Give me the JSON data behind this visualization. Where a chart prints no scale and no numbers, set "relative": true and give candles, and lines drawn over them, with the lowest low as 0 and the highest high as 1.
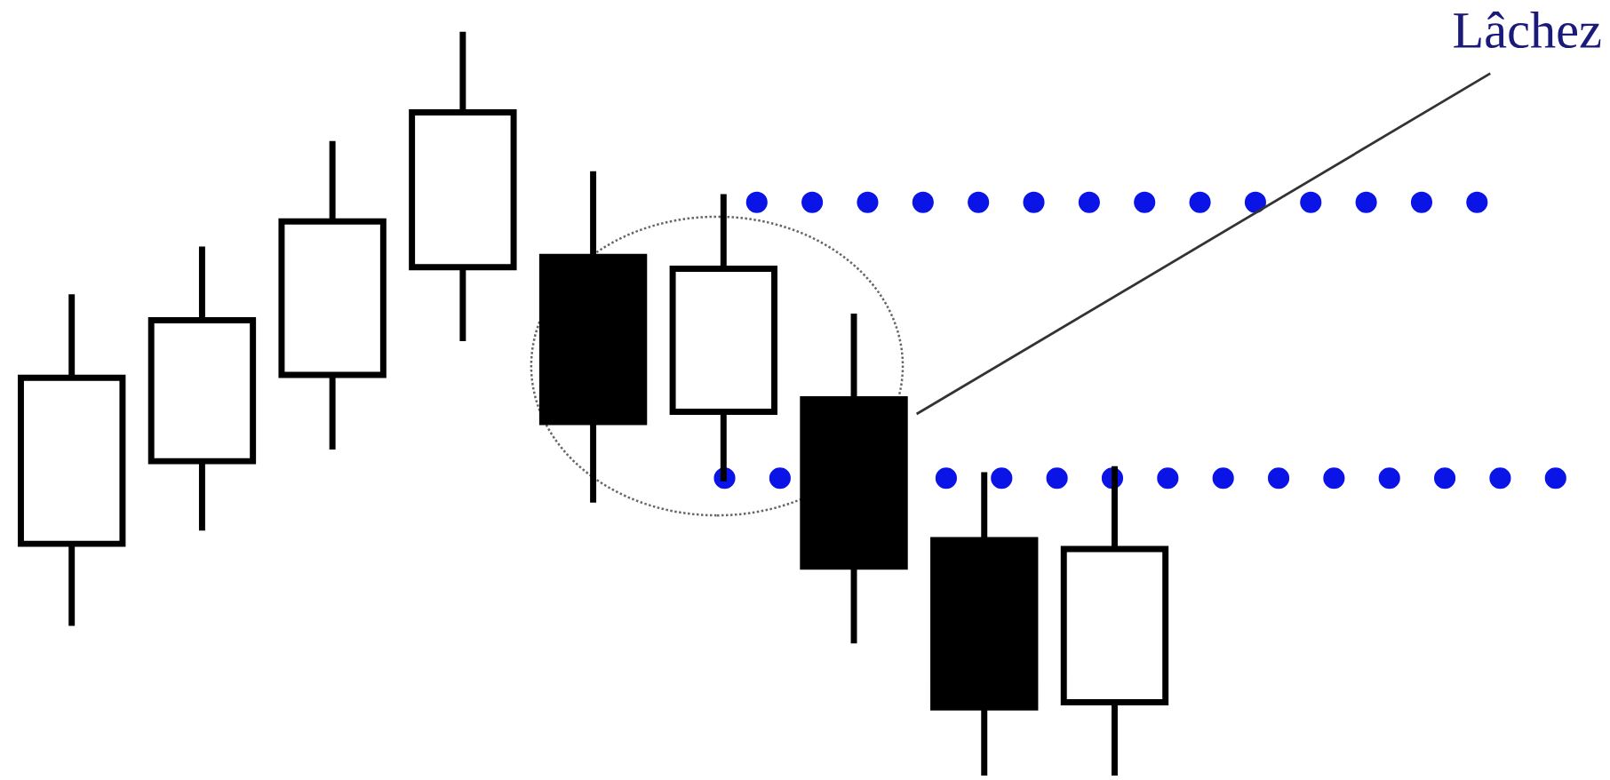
{
  "chart_data": {
    "type": "candlestick",
    "relative": true,
    "categories": [
      null,
      null,
      null,
      null,
      null,
      null,
      null,
      null,
      null
    ],
    "ohlc": [
      [
        0.31,
        0.644,
        0.203,
        0.535
      ],
      [
        0.422,
        0.709,
        0.332,
        0.613
      ],
      [
        0.539,
        0.852,
        0.442,
        0.747
      ],
      [
        0.685,
        1.0,
        0.589,
        0.895
      ],
      [
        0.699,
        0.811,
        0.37,
        0.475
      ],
      [
        0.489,
        0.78,
        0.399,
        0.683
      ],
      [
        0.506,
        0.618,
        0.179,
        0.279
      ],
      [
        0.315,
        0.403,
        0.0,
        0.088
      ],
      [
        0.095,
        0.411,
        0.0,
        0.303
      ]
    ],
    "ref_lines": [
      {
        "axis": "y",
        "value": 0.773,
        "color": "#0a14e6",
        "line_style": "dotted"
      },
      {
        "axis": "y",
        "value": 0.399,
        "color": "#0a14e6",
        "line_style": "dotted"
      }
    ],
    "annotations": [
      "Lâchez"
    ]
  }
}
